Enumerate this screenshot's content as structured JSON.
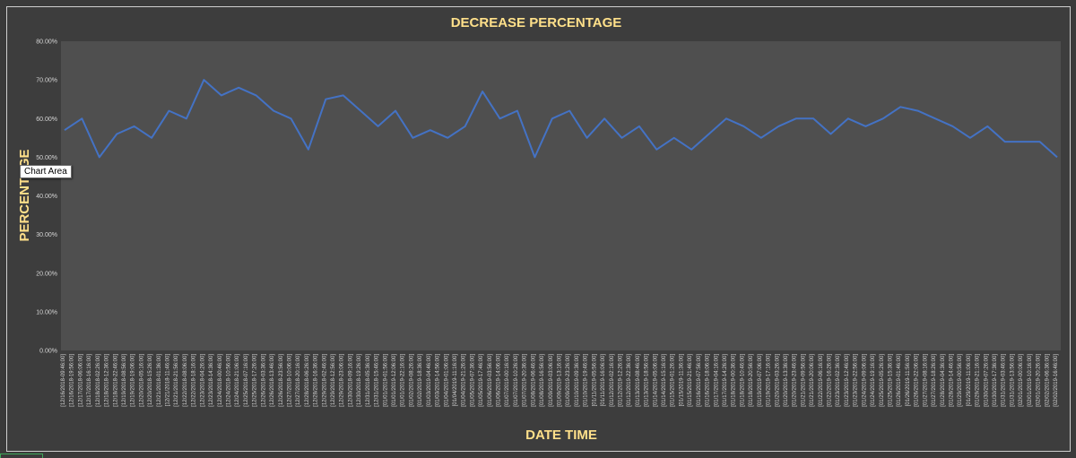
{
  "tooltip": "Chart Area",
  "chart_data": {
    "type": "line",
    "title": "DECREASE PERCENTAGE",
    "xlabel": "DATE TIME",
    "ylabel": "PERCENTAGE",
    "ylim": [
      0,
      0.8
    ],
    "y_ticks": [
      "0.00%",
      "10.00%",
      "20.00%",
      "30.00%",
      "40.00%",
      "50.00%",
      "60.00%",
      "70.00%",
      "80.00%"
    ],
    "grid": false,
    "legend": "none",
    "colors": {
      "line": "#4472c4",
      "plot_area": "#4f4f4f",
      "title": "#ffe08a"
    },
    "x_tick_labels": [
      "[12/16/2018-09:46:00]",
      "[12/16/2018-19:56:00]",
      "[12/17/2018-06:06:00]",
      "[12/17/2018-16:16:00]",
      "[12/18/2018-02:26:00]",
      "[12/18/2018-12:36:00]",
      "[12/18/2018-22:46:00]",
      "[12/19/2018-08:56:00]",
      "[12/19/2018-19:06:00]",
      "[12/20/2018-05:16:00]",
      "[12/20/2018-15:26:00]",
      "[12/21/2018-01:36:00]",
      "[12/21/2018-11:46:00]",
      "[12/21/2018-21:56:00]",
      "[12/22/2018-08:06:00]",
      "[12/22/2018-18:16:00]",
      "[12/23/2018-04:26:00]",
      "[12/23/2018-14:36:00]",
      "[12/24/2018-00:46:00]",
      "[12/24/2018-10:56:00]",
      "[12/24/2018-21:06:00]",
      "[12/25/2018-07:16:00]",
      "[12/25/2018-17:26:00]",
      "[12/26/2018-03:36:00]",
      "[12/26/2018-13:46:00]",
      "[12/26/2018-23:56:00]",
      "[12/27/2018-10:06:00]",
      "[12/27/2018-20:16:00]",
      "[12/28/2018-06:26:00]",
      "[12/28/2018-16:36:00]",
      "[12/29/2018-02:46:00]",
      "[12/29/2018-12:56:00]",
      "[12/29/2018-23:06:00]",
      "[12/30/2018-09:16:00]",
      "[12/30/2018-19:26:00]",
      "[12/31/2018-05:36:00]",
      "[12/31/2018-15:46:00]",
      "[01/01/2019-01:56:00]",
      "[01/01/2019-12:06:00]",
      "[01/01/2019-22:16:00]",
      "[01/02/2019-08:26:00]",
      "[01/02/2019-18:36:00]",
      "[01/03/2019-04:46:00]",
      "[01/03/2019-14:56:00]",
      "[01/04/2019-01:06:00]",
      "[01/04/2019-11:16:00]",
      "[01/04/2019-21:26:00]",
      "[01/05/2019-07:36:00]",
      "[01/05/2019-17:46:00]",
      "[01/06/2019-03:56:00]",
      "[01/06/2019-14:06:00]",
      "[01/07/2019-00:16:00]",
      "[01/07/2019-10:26:00]",
      "[01/07/2019-20:36:00]",
      "[01/08/2019-06:46:00]",
      "[01/08/2019-16:56:00]",
      "[01/09/2019-03:06:00]",
      "[01/09/2019-13:16:00]",
      "[01/09/2019-23:26:00]",
      "[01/10/2019-09:36:00]",
      "[01/10/2019-19:46:00]",
      "[01/11/2019-05:56:00]",
      "[01/11/2019-16:06:00]",
      "[01/12/2019-02:16:00]",
      "[01/12/2019-12:26:00]",
      "[01/12/2019-22:36:00]",
      "[01/13/2019-08:46:00]",
      "[01/13/2019-18:56:00]",
      "[01/14/2019-05:06:00]",
      "[01/14/2019-15:16:00]",
      "[01/15/2019-01:26:00]",
      "[01/15/2019-11:36:00]",
      "[01/15/2019-21:46:00]",
      "[01/16/2019-07:56:00]",
      "[01/16/2019-18:06:00]",
      "[01/17/2019-04:16:00]",
      "[01/17/2019-14:26:00]",
      "[01/18/2019-00:36:00]",
      "[01/18/2019-10:46:00]",
      "[01/18/2019-20:56:00]",
      "[01/19/2019-07:06:00]",
      "[01/19/2019-17:16:00]",
      "[01/20/2019-03:26:00]",
      "[01/20/2019-13:36:00]",
      "[01/20/2019-23:46:00]",
      "[01/21/2019-09:56:00]",
      "[01/21/2019-20:06:00]",
      "[01/22/2019-06:16:00]",
      "[01/22/2019-16:26:00]",
      "[01/23/2019-02:36:00]",
      "[01/23/2019-12:46:00]",
      "[01/23/2019-22:56:00]",
      "[01/24/2019-09:06:00]",
      "[01/24/2019-19:16:00]",
      "[01/25/2019-05:26:00]",
      "[01/25/2019-15:36:00]",
      "[01/26/2019-01:46:00]",
      "[01/26/2019-11:56:00]",
      "[01/26/2019-22:06:00]",
      "[01/27/2019-08:16:00]",
      "[01/27/2019-18:26:00]",
      "[01/28/2019-04:36:00]",
      "[01/28/2019-14:46:00]",
      "[01/29/2019-00:56:00]",
      "[01/29/2019-11:06:00]",
      "[01/29/2019-21:16:00]",
      "[01/30/2019-07:26:00]",
      "[01/30/2019-17:36:00]",
      "[01/31/2019-03:46:00]",
      "[01/31/2019-13:56:00]",
      "[02/01/2019-00:06:00]",
      "[02/01/2019-10:16:00]",
      "[02/01/2019-20:26:00]",
      "[02/02/2019-06:36:00]",
      "[02/02/2019-16:46:00]"
    ],
    "series": [
      {
        "x": [
          "2018-12-16 09:46",
          "2018-12-17 06:06",
          "2018-12-18 02:26",
          "2018-12-18 22:46",
          "2018-12-19 19:06",
          "2018-12-20 15:26",
          "2018-12-21 11:46",
          "2018-12-22 08:06",
          "2018-12-23 04:26",
          "2018-12-24 00:46",
          "2018-12-24 21:06",
          "2018-12-25 17:26",
          "2018-12-26 13:46",
          "2018-12-27 10:06",
          "2018-12-28 06:26",
          "2018-12-29 02:46",
          "2018-12-29 23:06",
          "2018-12-30 19:26",
          "2018-12-31 15:46",
          "2019-01-01 12:06",
          "2019-01-02 08:26",
          "2019-01-03 04:46",
          "2019-01-04 01:06",
          "2019-01-04 21:26",
          "2019-01-05 17:46",
          "2019-01-06 14:06",
          "2019-01-07 10:26",
          "2019-01-08 06:46",
          "2019-01-09 03:06",
          "2019-01-09 23:26",
          "2019-01-10 19:46",
          "2019-01-11 16:06",
          "2019-01-12 12:26",
          "2019-01-13 08:46",
          "2019-01-14 05:06",
          "2019-01-15 01:26",
          "2019-01-15 21:46",
          "2019-01-16 18:06",
          "2019-01-17 14:26",
          "2019-01-18 10:46",
          "2019-01-19 07:06",
          "2019-01-20 03:26",
          "2019-01-20 23:46",
          "2019-01-21 20:06",
          "2019-01-22 16:26",
          "2019-01-23 12:46",
          "2019-01-24 09:06",
          "2019-01-25 05:26",
          "2019-01-26 01:46",
          "2019-01-26 22:06",
          "2019-01-27 18:26",
          "2019-01-28 14:46",
          "2019-01-29 11:06",
          "2019-01-30 07:26",
          "2019-01-31 03:46",
          "2019-02-01 00:06",
          "2019-02-01 20:26",
          "2019-02-02 16:46"
        ],
        "values": [
          0.57,
          0.6,
          0.5,
          0.56,
          0.58,
          0.55,
          0.62,
          0.6,
          0.7,
          0.66,
          0.68,
          0.66,
          0.62,
          0.6,
          0.52,
          0.65,
          0.66,
          0.62,
          0.58,
          0.62,
          0.55,
          0.57,
          0.55,
          0.58,
          0.67,
          0.6,
          0.62,
          0.5,
          0.6,
          0.62,
          0.55,
          0.6,
          0.55,
          0.58,
          0.52,
          0.55,
          0.52,
          0.56,
          0.6,
          0.58,
          0.55,
          0.58,
          0.6,
          0.6,
          0.56,
          0.6,
          0.58,
          0.6,
          0.63,
          0.62,
          0.6,
          0.58,
          0.55,
          0.58,
          0.54,
          0.54,
          0.54,
          0.5
        ]
      }
    ]
  }
}
